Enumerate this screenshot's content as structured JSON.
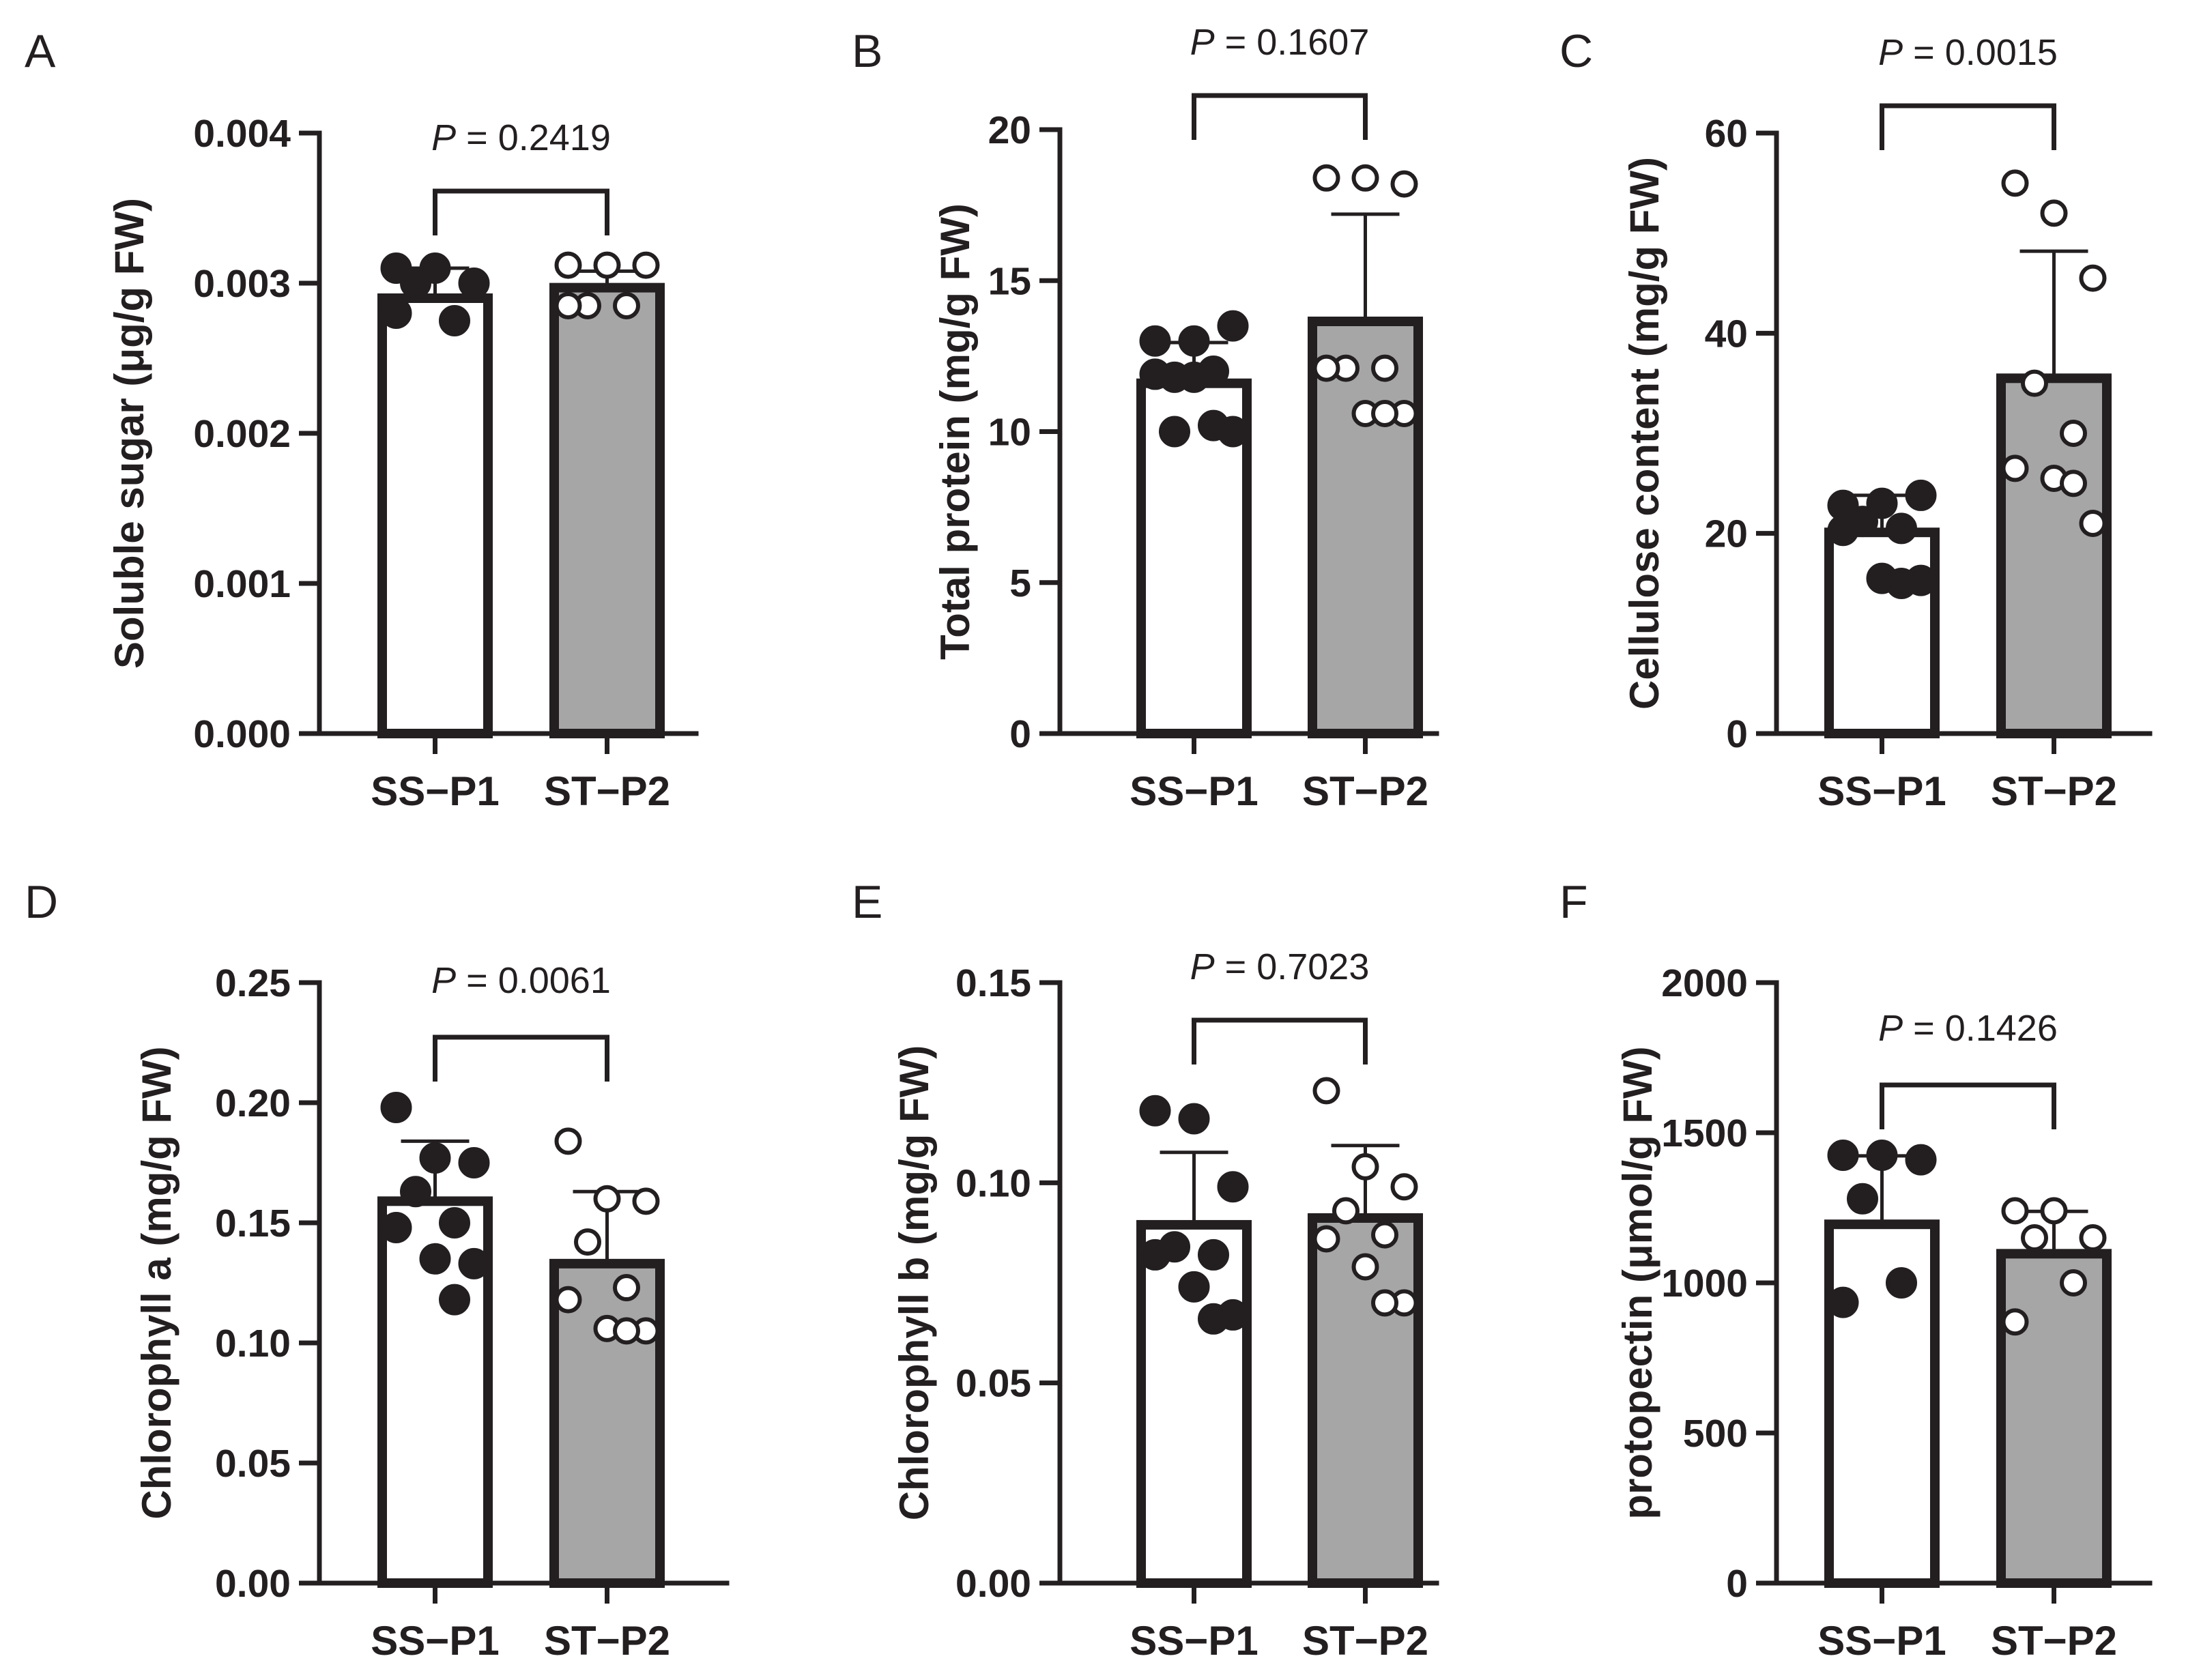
{
  "chart_data": [
    {
      "panel": "A",
      "type": "bar",
      "ylabel": "Soluble sugar (μg/g FW)",
      "ylim": [
        0,
        0.004
      ],
      "yticks": [
        "0.000",
        "0.001",
        "0.002",
        "0.003",
        "0.004"
      ],
      "categories": [
        "SS−P1",
        "ST−P2"
      ],
      "values": [
        0.0029,
        0.00297
      ],
      "error_upper": [
        0.0031,
        0.00308
      ],
      "points": [
        [
          0.0031,
          0.0031,
          0.003,
          0.003,
          0.00275,
          0.0028
        ],
        [
          0.00312,
          0.00312,
          0.00312,
          0.00285,
          0.00285,
          0.00285
        ]
      ],
      "fills": [
        "#ffffff",
        "#a6a6a6"
      ],
      "annotation": {
        "p_label": "P",
        "p_value": "= 0.2419"
      }
    },
    {
      "panel": "B",
      "type": "bar",
      "ylabel": "Total protein (mg/g FW)",
      "ylim": [
        0,
        20
      ],
      "yticks": [
        "0",
        "5",
        "10",
        "15",
        "20"
      ],
      "categories": [
        "SS−P1",
        "ST−P2"
      ],
      "values": [
        11.6,
        13.65
      ],
      "error_upper": [
        12.95,
        17.2
      ],
      "points": [
        [
          13.0,
          13.0,
          13.5,
          11.8,
          12.0,
          11.9,
          11.8,
          10.0,
          10.2,
          10.0
        ],
        [
          18.4,
          18.4,
          18.2,
          12.1,
          12.1,
          12.1,
          10.6,
          10.6,
          10.6
        ]
      ],
      "fills": [
        "#ffffff",
        "#a6a6a6"
      ],
      "annotation": {
        "p_label": "P",
        "p_value": "= 0.1607"
      }
    },
    {
      "panel": "C",
      "type": "bar",
      "ylabel": "Cellulose content (mg/g FW)",
      "ylim": [
        0,
        60
      ],
      "yticks": [
        "0",
        "20",
        "40",
        "60"
      ],
      "categories": [
        "SS−P1",
        "ST−P2"
      ],
      "values": [
        20.1,
        35.5
      ],
      "error_upper": [
        23.8,
        48.2
      ],
      "points": [
        [
          22.8,
          23.0,
          23.8,
          21.2,
          20.5,
          20.3,
          15.5,
          15.3,
          15.0
        ],
        [
          55.0,
          52.0,
          45.5,
          35.0,
          30.0,
          26.5,
          25.5,
          21.0,
          25.0
        ]
      ],
      "fills": [
        "#ffffff",
        "#a6a6a6"
      ],
      "annotation": {
        "p_label": "P",
        "p_value": "= 0.0015"
      }
    },
    {
      "panel": "D",
      "type": "bar",
      "ylabel": "Chlorophyll a (mg/g FW)",
      "ylim": [
        0,
        0.25
      ],
      "yticks": [
        "0.00",
        "0.05",
        "0.10",
        "0.15",
        "0.20",
        "0.25"
      ],
      "categories": [
        "SS−P1",
        "ST−P2"
      ],
      "values": [
        0.159,
        0.133
      ],
      "error_upper": [
        0.184,
        0.163
      ],
      "points": [
        [
          0.198,
          0.177,
          0.175,
          0.163,
          0.15,
          0.148,
          0.135,
          0.133,
          0.118
        ],
        [
          0.184,
          0.16,
          0.159,
          0.142,
          0.123,
          0.118,
          0.106,
          0.105,
          0.105
        ]
      ],
      "fills": [
        "#ffffff",
        "#a6a6a6"
      ],
      "annotation": {
        "p_label": "P",
        "p_value": "= 0.0061"
      }
    },
    {
      "panel": "E",
      "type": "bar",
      "ylabel": "Chlorophyll b (mg/g FW)",
      "ylim": [
        0,
        0.15
      ],
      "yticks": [
        "0.00",
        "0.05",
        "0.10",
        "0.15"
      ],
      "categories": [
        "SS−P1",
        "ST−P2"
      ],
      "values": [
        0.0895,
        0.0912
      ],
      "error_upper": [
        0.1076,
        0.1093
      ],
      "points": [
        [
          0.118,
          0.116,
          0.099,
          0.084,
          0.082,
          0.082,
          0.074,
          0.067,
          0.066
        ],
        [
          0.123,
          0.104,
          0.099,
          0.093,
          0.087,
          0.086,
          0.079,
          0.07,
          0.07
        ]
      ],
      "fills": [
        "#ffffff",
        "#a6a6a6"
      ],
      "annotation": {
        "p_label": "P",
        "p_value": "= 0.7023"
      }
    },
    {
      "panel": "F",
      "type": "bar",
      "ylabel": "protopectin (μmol/g FW)",
      "ylim": [
        0,
        2000
      ],
      "yticks": [
        "0",
        "500",
        "1000",
        "1500",
        "2000"
      ],
      "categories": [
        "SS−P1",
        "ST−P2"
      ],
      "values": [
        1195,
        1097
      ],
      "error_upper": [
        1423,
        1238
      ],
      "points": [
        [
          1425,
          1425,
          1410,
          1280,
          1000,
          935
        ],
        [
          1240,
          1240,
          1150,
          1150,
          1000,
          870
        ]
      ],
      "fills": [
        "#ffffff",
        "#a6a6a6"
      ],
      "annotation": {
        "p_label": "P",
        "p_value": "= 0.1426"
      }
    }
  ]
}
